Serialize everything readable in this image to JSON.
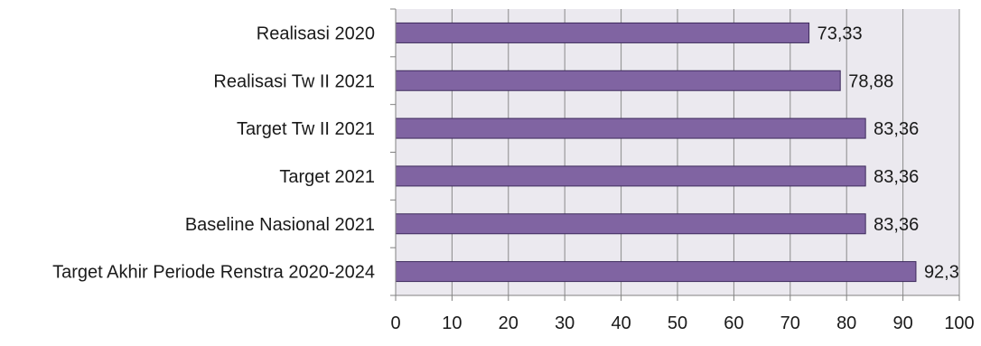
{
  "chart_data": {
    "type": "bar",
    "orientation": "horizontal",
    "categories": [
      "Realisasi 2020",
      "Realisasi Tw II 2021",
      "Target Tw II 2021",
      "Target 2021",
      "Baseline Nasional 2021",
      "Target Akhir Periode Renstra 2020-2024"
    ],
    "values": [
      73.33,
      78.88,
      83.36,
      83.36,
      83.36,
      92.3
    ],
    "value_labels": [
      "73,33",
      "78,88",
      "83,36",
      "83,36",
      "83,36",
      "92,3"
    ],
    "xlim": [
      0,
      100
    ],
    "x_ticks": [
      0,
      10,
      20,
      30,
      40,
      50,
      60,
      70,
      80,
      90,
      100
    ],
    "title": "",
    "xlabel": "",
    "ylabel": "",
    "grid": true,
    "legend": "none",
    "colors": {
      "bar_fill": "#8064a2",
      "bar_stroke": "#3d2a5c",
      "plot_background": "#ebe9ef",
      "gridline": "#8a8a8a",
      "axis": "#808080"
    }
  }
}
